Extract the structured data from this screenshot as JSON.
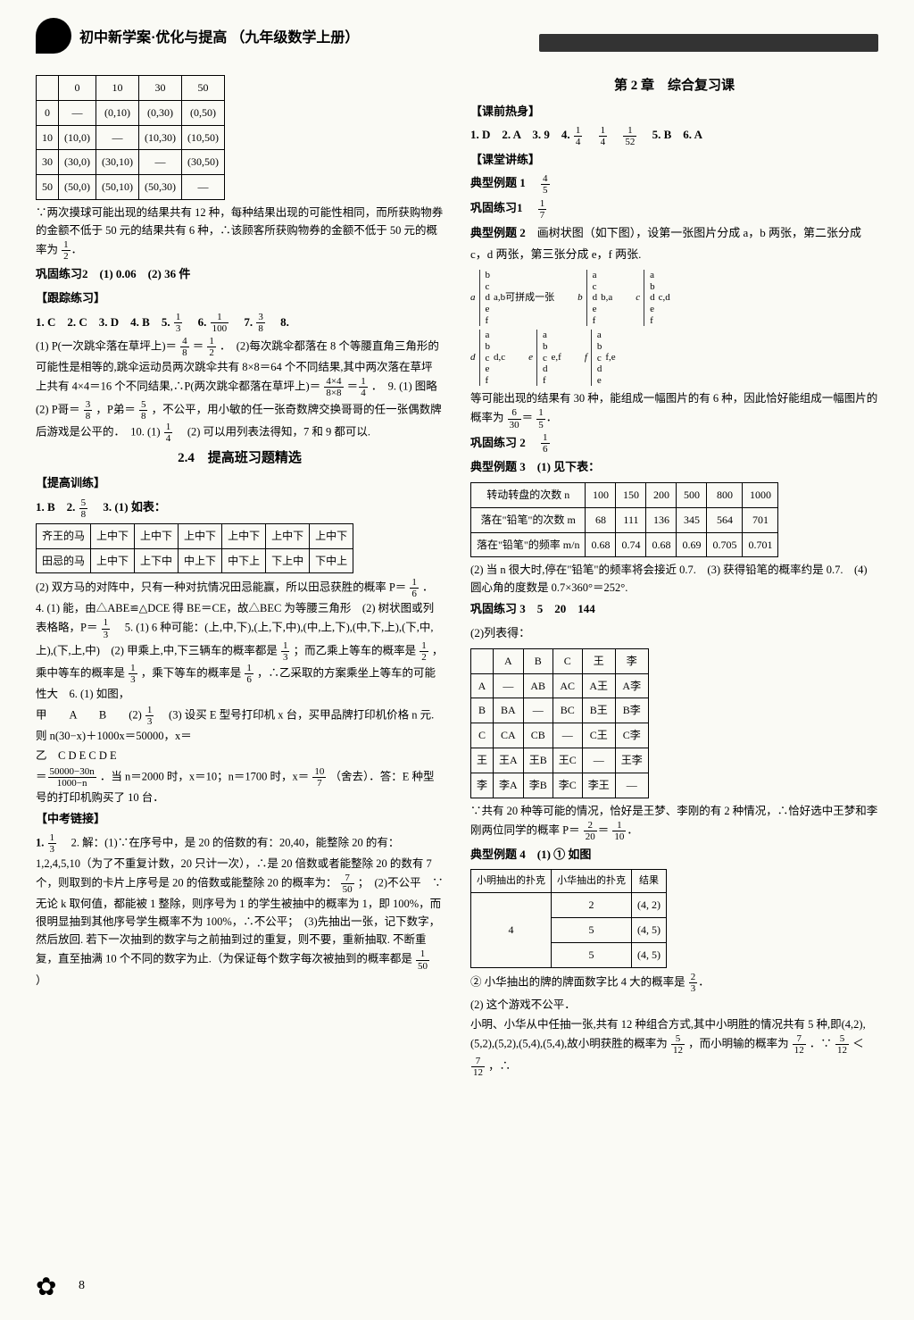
{
  "header": {
    "banner_main": "初中新学案·优化与提高",
    "banner_sub": "（九年级数学上册）"
  },
  "left": {
    "table1": {
      "cols": [
        "",
        "0",
        "10",
        "30",
        "50"
      ],
      "rows": [
        [
          "0",
          "—",
          "(0,10)",
          "(0,30)",
          "(0,50)"
        ],
        [
          "10",
          "(10,0)",
          "—",
          "(10,30)",
          "(10,50)"
        ],
        [
          "30",
          "(30,0)",
          "(30,10)",
          "—",
          "(30,50)"
        ],
        [
          "50",
          "(50,0)",
          "(50,10)",
          "(50,30)",
          "—"
        ]
      ]
    },
    "p1": "∵两次摸球可能出现的结果共有 12 种，每种结果出现的可能性相同，而所获购物券的金额不低于 50 元的结果共有 6 种，∴该顾客所获购物券的金额不低于 50 元的概率为",
    "p1_frac": {
      "num": "1",
      "den": "2"
    },
    "gg2": "巩固练习2　(1) 0.06　(2) 36 件",
    "track_title": "【跟踪练习】",
    "track_line1": "1. C　2. C　3. D　4. B　5.",
    "track_f5": {
      "num": "1",
      "den": "3"
    },
    "track_6": "　6.",
    "track_f6": {
      "num": "1",
      "den": "100"
    },
    "track_7": "　7.",
    "track_f7": {
      "num": "3",
      "den": "8"
    },
    "track_8": "　8.",
    "p8_1": "(1) P(一次跳伞落在草坪上)＝",
    "f_4_8": {
      "num": "4",
      "den": "8"
    },
    "eq": "＝",
    "f_1_2": {
      "num": "1",
      "den": "2"
    },
    "p8_2": "．　(2)每次跳伞都落在 8 个等腰直角三角形的可能性是相等的,跳伞运动员两次跳伞共有 8×8＝64 个不同结果,其中两次落在草坪上共有 4×4＝16 个不同结果,∴P(两次跳伞都落在草坪上)＝",
    "f_4x4": {
      "num": "4×4",
      "den": "8×8"
    },
    "f_1_4": {
      "num": "1",
      "den": "4"
    },
    "p9": "．　9. (1) 图略　(2) P哥＝",
    "f_3_8": {
      "num": "3",
      "den": "8"
    },
    "p9b": "，P弟＝",
    "f_5_8": {
      "num": "5",
      "den": "8"
    },
    "p9c": "，不公平，用小敏的任一张奇数牌交换哥哥的任一张偶数牌后游戏是公平的．　10. (1)",
    "p10b": "　(2) 可以用列表法得知，7 和 9 都可以.",
    "sec24": "2.4　提高班习题精选",
    "raise_title": "【提高训练】",
    "raise_1": "1. B　2.",
    "raise_3": "　3. (1) 如表：",
    "table2": {
      "r1": [
        "齐王的马",
        "上中下",
        "上中下",
        "上中下",
        "上中下",
        "上中下",
        "上中下"
      ],
      "r2": [
        "田忌的马",
        "上中下",
        "上下中",
        "中上下",
        "中下上",
        "下上中",
        "下中上"
      ]
    },
    "p_r2": "(2) 双方马的对阵中，只有一种对抗情况田忌能赢，所以田忌获胜的概率 P＝",
    "f_1_6": {
      "num": "1",
      "den": "6"
    },
    "p_r4": "．　4. (1) 能，由△ABE≌△DCE 得 BE＝CE，故△BEC 为等腰三角形　(2) 树状图或列表格略，P＝",
    "f_1_3": {
      "num": "1",
      "den": "3"
    },
    "p_r5a": "　5. (1) 6 种可能：(上,中,下),(上,下,中),(中,上,下),(中,下,上),(下,中,上),(下,上,中)　(2) 甲乘上,中,下三辆车的概率都是",
    "p_r5b": "；而乙乘上等车的概率是",
    "p_r5c": "，乘中等车的概率是",
    "p_r5d": "，乘下等车的概率是",
    "p_r5e": "，∴乙采取的方案乘坐上等车的可能性大　6. (1) 如图，",
    "tree_label": "甲　　A　　B",
    "tree_leaves": "乙　C D E C D E",
    "p_r6b": "(2)",
    "p_r6c": "　(3) 设买 E 型号打印机 x 台，买甲品牌打印机价格 n 元. 则 n(30−x)＋1000x＝50000，x＝",
    "f_big": {
      "num": "50000−30n",
      "den": "1000−n"
    },
    "p_r6d": "．当 n＝2000 时，x＝10；n＝1700 时，x＝",
    "f_10_7": {
      "num": "10",
      "den": "7"
    },
    "p_r6e": "（舍去）．答：E 种型号的打印机购买了 10 台．",
    "zk_title": "【中考链接】",
    "zk_1": "1.",
    "zk_2": "　2. 解：(1)∵在序号中，是 20 的倍数的有：20,40，能整除 20 的有：1,2,4,5,10（为了不重复计数，20 只计一次），∴是 20 倍数或者能整除 20 的数有 7 个，则取到的卡片上序号是 20 的倍数或能整除 20 的概率为：",
    "f_7_50": {
      "num": "7",
      "den": "50"
    },
    "zk_2b": "；　(2)不公平　∵无论 k 取何值，都能被 1 整除，则序号为 1 的学生被抽中的概率为 1，即 100%，而很明显抽到其他序号学生概率不为 100%，∴不公平；　(3)先抽出一张，记下数字，然后放回. 若下一次抽到的数字与之前抽到过的重复，则不要，重新抽取. 不断重复，直至抽满 10 个不同的数字为止.（为保证每个数字每次被抽到的概率都是",
    "f_1_50": {
      "num": "1",
      "den": "50"
    },
    "zk_2c": "）"
  },
  "right": {
    "title": "第 2 章　综合复习课",
    "warmup_title": "【课前热身】",
    "warmup": "1. D　2. A　3. 9　4.",
    "f_1_4": {
      "num": "1",
      "den": "4"
    },
    "f_1_52": {
      "num": "1",
      "den": "52"
    },
    "warmup_b": "　5. B　6. A",
    "lesson_title": "【课堂讲练】",
    "dx1_label": "典型例题 1",
    "f_4_5": {
      "num": "4",
      "den": "5"
    },
    "gglx1": "巩固练习1",
    "f_1_7": {
      "num": "1",
      "den": "7"
    },
    "dx2_label": "典型例题 2",
    "dx2_text": "画树状图（如下图），设第一张图片分成 a，b 两张，第二张分成 c，d 两张，第三张分成 e，f 两张.",
    "trees_row1": [
      {
        "root": "a",
        "branches": [
          "b",
          "c",
          "d",
          "e",
          "f"
        ],
        "label": "a,b可拼成一张"
      },
      {
        "root": "b",
        "branches": [
          "a",
          "c",
          "d",
          "e",
          "f"
        ],
        "label": "b,a"
      },
      {
        "root": "c",
        "branches": [
          "a",
          "b",
          "d",
          "e",
          "f"
        ],
        "label": "c,d"
      }
    ],
    "trees_row2": [
      {
        "root": "d",
        "branches": [
          "a",
          "b",
          "c",
          "e",
          "f"
        ],
        "label": "d,c"
      },
      {
        "root": "e",
        "branches": [
          "a",
          "b",
          "c",
          "d",
          "f"
        ],
        "label": "e,f"
      },
      {
        "root": "f",
        "branches": [
          "a",
          "b",
          "c",
          "d",
          "e"
        ],
        "label": "f,e"
      }
    ],
    "dx2_concl": "等可能出现的结果有 30 种，能组成一幅图片的有 6 种，因此恰好能组成一幅图片的概率为",
    "f_6_30": {
      "num": "6",
      "den": "30"
    },
    "f_1_5": {
      "num": "1",
      "den": "5"
    },
    "gg2_label": "巩固练习 2",
    "f_1_6": {
      "num": "1",
      "den": "6"
    },
    "dx3_label": "典型例题 3　(1) 见下表：",
    "table3": {
      "head": [
        "转动转盘的次数 n",
        "100",
        "150",
        "200",
        "500",
        "800",
        "1000"
      ],
      "row1": [
        "落在\"铅笔\"的次数 m",
        "68",
        "111",
        "136",
        "345",
        "564",
        "701"
      ],
      "row2": [
        "落在\"铅笔\"的频率 m/n",
        "0.68",
        "0.74",
        "0.68",
        "0.69",
        "0.705",
        "0.701"
      ]
    },
    "dx3_2": "(2) 当 n 很大时,停在\"铅笔\"的频率将会接近 0.7.　(3) 获得铅笔的概率约是 0.7.　(4) 圆心角的度数是 0.7×360°＝252°.",
    "gg3": "巩固练习 3　5　20　144",
    "gg3b": "(2)列表得：",
    "table4": {
      "head": [
        "",
        "A",
        "B",
        "C",
        "王",
        "李"
      ],
      "rows": [
        [
          "A",
          "—",
          "AB",
          "AC",
          "A王",
          "A李"
        ],
        [
          "B",
          "BA",
          "—",
          "BC",
          "B王",
          "B李"
        ],
        [
          "C",
          "CA",
          "CB",
          "—",
          "C王",
          "C李"
        ],
        [
          "王",
          "王A",
          "王B",
          "王C",
          "—",
          "王李"
        ],
        [
          "李",
          "李A",
          "李B",
          "李C",
          "李王",
          "—"
        ]
      ]
    },
    "t4_concl": "∵共有 20 种等可能的情况，恰好是王梦、李刚的有 2 种情况，∴恰好选中王梦和李刚两位同学的概率 P＝",
    "f_2_20": {
      "num": "2",
      "den": "20"
    },
    "f_1_10": {
      "num": "1",
      "den": "10"
    },
    "dx4_label": "典型例题 4　(1) ① 如图",
    "tree4": {
      "head": [
        "小明抽出的扑克",
        "小华抽出的扑克",
        "结果"
      ],
      "root": "4",
      "branches": [
        {
          "b": "2",
          "r": "(4, 2)"
        },
        {
          "b": "5",
          "r": "(4, 5)"
        },
        {
          "b": "5",
          "r": "(4, 5)"
        }
      ]
    },
    "dx4_2": "② 小华抽出的牌的牌面数字比 4 大的概率是",
    "f_2_3": {
      "num": "2",
      "den": "3"
    },
    "dx4_3": "(2) 这个游戏不公平．",
    "dx4_4a": "小明、小华从中任抽一张,共有 12 种组合方式,其中小明胜的情况共有 5 种,即(4,2),(5,2),(5,2),(5,4),(5,4),故小明获胜的概率为",
    "f_5_12": {
      "num": "5",
      "den": "12"
    },
    "dx4_4b": "，而小明输的概率为",
    "f_7_12": {
      "num": "7",
      "den": "12"
    },
    "dx4_4c": "．∵",
    "dx4_4d": "＜",
    "dx4_4e": "，∴"
  },
  "footer": {
    "page_num": "8"
  }
}
